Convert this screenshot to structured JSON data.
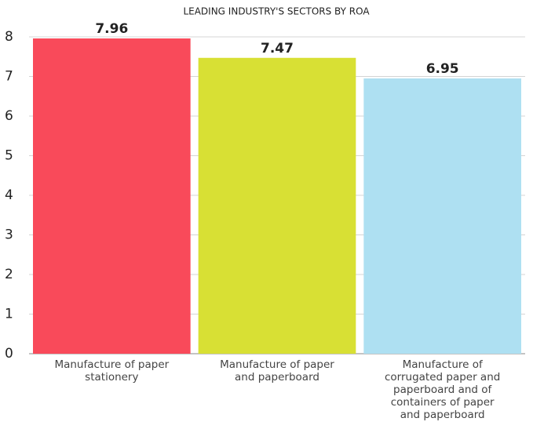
{
  "chart_data": {
    "type": "bar",
    "title": "LEADING INDUSTRY'S SECTORS BY ROA",
    "categories": [
      "Manufacture of paper stationery",
      "Manufacture of paper and paperboard",
      "Manufacture of corrugated paper and paperboard and of containers of paper and paperboard"
    ],
    "values": [
      7.96,
      7.47,
      6.95
    ],
    "colors": [
      "#f94a5a",
      "#d8e034",
      "#aee0f2"
    ],
    "ylim": [
      0,
      8
    ],
    "yticks": [
      0,
      1,
      2,
      3,
      4,
      5,
      6,
      7,
      8
    ],
    "grid": true
  }
}
